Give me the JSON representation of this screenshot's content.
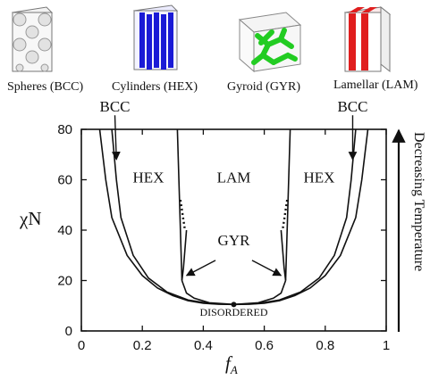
{
  "structures": [
    {
      "label": "Spheres (BCC)",
      "icon": "spheres-bcc-icon"
    },
    {
      "label": "Cylinders (HEX)",
      "icon": "cylinders-hex-icon"
    },
    {
      "label": "Gyroid (GYR)",
      "icon": "gyroid-icon"
    },
    {
      "label": "Lamellar (LAM)",
      "icon": "lamellar-icon"
    }
  ],
  "colors": {
    "cylinder": "#1a1ad6",
    "gyroid": "#22cc22",
    "lamella": "#e01e1e"
  },
  "chart_data": {
    "type": "line",
    "xlabel": "f",
    "xlabel_sub": "A",
    "ylabel": "χN",
    "xlim": [
      0,
      1
    ],
    "ylim": [
      0,
      80
    ],
    "xticks": [
      0,
      0.2,
      0.4,
      0.6,
      0.8,
      1
    ],
    "xtick_labels": [
      "0",
      "0.2",
      "0.4",
      "0.6",
      "0.8",
      "1"
    ],
    "yticks": [
      0,
      20,
      40,
      60,
      80
    ],
    "ytick_labels": [
      "0",
      "20",
      "40",
      "60",
      "80"
    ],
    "side_label": "Decreasing Temperature",
    "regions": [
      {
        "label": "HEX",
        "x": 0.22,
        "y": 59
      },
      {
        "label": "LAM",
        "x": 0.5,
        "y": 59
      },
      {
        "label": "HEX",
        "x": 0.78,
        "y": 59
      },
      {
        "label": "GYR",
        "x": 0.5,
        "y": 34
      },
      {
        "label": "DISORDERED",
        "x": 0.5,
        "y": 6
      }
    ],
    "annotations": [
      {
        "label": "BCC",
        "text_x": 0.11,
        "text_y": 87,
        "arrow_to": [
          0.115,
          68
        ]
      },
      {
        "label": "BCC",
        "text_x": 0.89,
        "text_y": 87,
        "arrow_to": [
          0.89,
          68
        ]
      }
    ],
    "critical_point": [
      0.5,
      10.5
    ],
    "series": [
      {
        "values": [
          [
            0.06,
            80
          ],
          [
            0.08,
            60
          ],
          [
            0.1,
            45
          ],
          [
            0.15,
            30
          ],
          [
            0.2,
            22
          ],
          [
            0.25,
            17
          ],
          [
            0.3,
            14
          ],
          [
            0.35,
            12
          ],
          [
            0.4,
            11
          ],
          [
            0.45,
            10.6
          ],
          [
            0.5,
            10.5
          ],
          [
            0.55,
            10.6
          ],
          [
            0.6,
            11
          ],
          [
            0.65,
            12
          ],
          [
            0.7,
            14
          ],
          [
            0.75,
            17
          ],
          [
            0.8,
            22
          ],
          [
            0.85,
            30
          ],
          [
            0.9,
            45
          ],
          [
            0.92,
            60
          ],
          [
            0.94,
            80
          ]
        ]
      },
      {
        "values": [
          [
            0.1,
            80
          ],
          [
            0.115,
            60
          ],
          [
            0.13,
            45
          ],
          [
            0.17,
            30
          ],
          [
            0.22,
            21
          ],
          [
            0.28,
            15.5
          ],
          [
            0.35,
            12.3
          ],
          [
            0.42,
            10.9
          ],
          [
            0.5,
            10.5
          ],
          [
            0.58,
            10.9
          ],
          [
            0.65,
            12.3
          ],
          [
            0.72,
            15.5
          ],
          [
            0.78,
            21
          ],
          [
            0.83,
            30
          ],
          [
            0.87,
            45
          ],
          [
            0.885,
            60
          ],
          [
            0.9,
            80
          ]
        ]
      },
      {
        "values": [
          [
            0.33,
            20
          ],
          [
            0.345,
            15
          ],
          [
            0.37,
            13
          ],
          [
            0.42,
            11.2
          ],
          [
            0.5,
            10.5
          ],
          [
            0.58,
            11.2
          ],
          [
            0.63,
            13
          ],
          [
            0.655,
            15
          ],
          [
            0.67,
            20
          ]
        ]
      },
      {
        "values": [
          [
            0.315,
            80
          ],
          [
            0.32,
            60
          ],
          [
            0.325,
            40
          ],
          [
            0.33,
            20
          ]
        ]
      },
      {
        "values": [
          [
            0.345,
            40
          ],
          [
            0.335,
            25
          ],
          [
            0.33,
            20
          ]
        ]
      },
      {
        "values": [
          [
            0.685,
            80
          ],
          [
            0.68,
            60
          ],
          [
            0.675,
            40
          ],
          [
            0.67,
            20
          ]
        ]
      },
      {
        "values": [
          [
            0.655,
            40
          ],
          [
            0.665,
            25
          ],
          [
            0.67,
            20
          ]
        ]
      }
    ],
    "dotted": [
      {
        "values": [
          [
            0.325,
            52
          ],
          [
            0.34,
            40
          ]
        ]
      },
      {
        "values": [
          [
            0.675,
            52
          ],
          [
            0.66,
            40
          ]
        ]
      }
    ]
  }
}
